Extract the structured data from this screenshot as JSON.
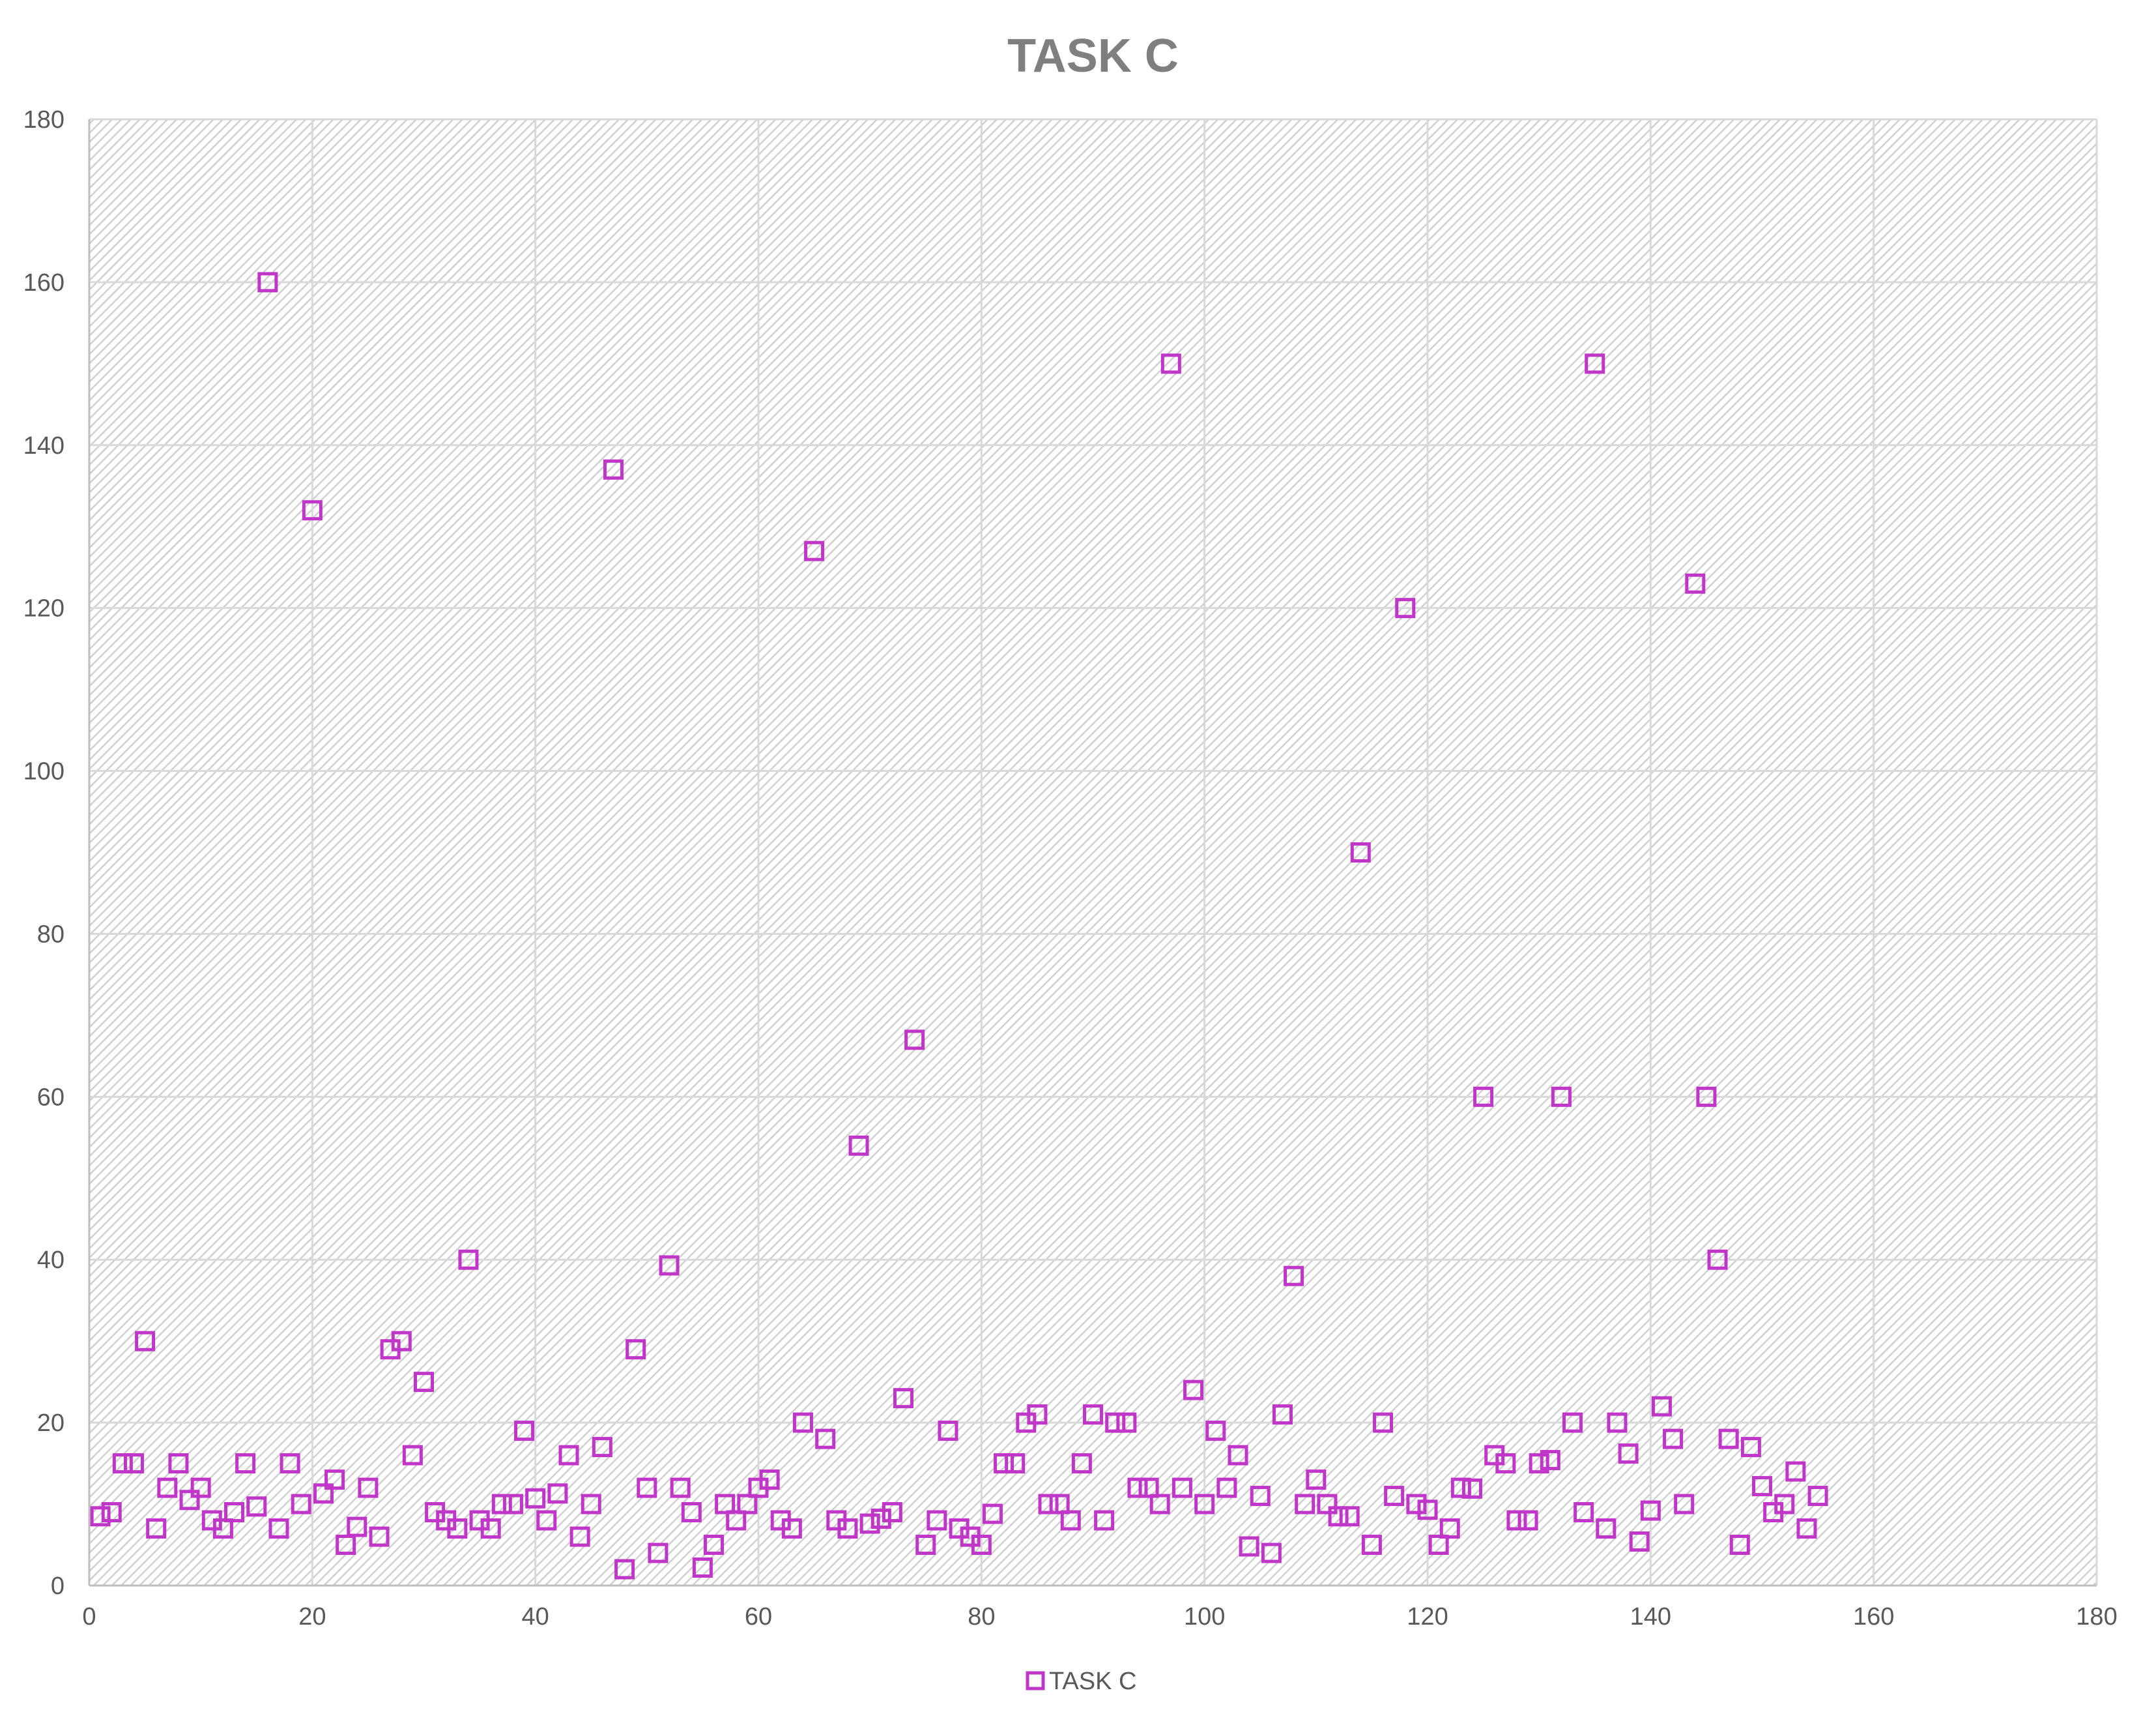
{
  "chart_data": {
    "type": "scatter",
    "title": "TASK C",
    "xlabel": "",
    "ylabel": "",
    "xlim": [
      0,
      180
    ],
    "ylim": [
      0,
      180
    ],
    "x_ticks": [
      0,
      20,
      40,
      60,
      80,
      100,
      120,
      140,
      160,
      180
    ],
    "y_ticks": [
      0,
      20,
      40,
      60,
      80,
      100,
      120,
      140,
      160,
      180
    ],
    "grid": true,
    "legend_position": "bottom",
    "colors": {
      "marker": "#c036c8",
      "grid": "#d9d9d9",
      "background_hatch": "#d0d0d0",
      "title": "#7f7f7f",
      "tick": "#595959"
    },
    "series": [
      {
        "name": "TASK C",
        "marker": "hollow-square",
        "x": [
          1,
          2,
          3,
          4,
          5,
          6,
          7,
          8,
          9,
          10,
          11,
          12,
          13,
          14,
          15,
          16,
          17,
          18,
          19,
          20,
          21,
          22,
          23,
          24,
          25,
          26,
          27,
          28,
          29,
          30,
          31,
          32,
          33,
          34,
          35,
          36,
          37,
          38,
          39,
          40,
          41,
          42,
          43,
          44,
          45,
          46,
          47,
          48,
          49,
          50,
          51,
          52,
          53,
          54,
          55,
          56,
          57,
          58,
          59,
          60,
          61,
          62,
          63,
          64,
          65,
          66,
          67,
          68,
          69,
          70,
          71,
          72,
          73,
          74,
          75,
          76,
          77,
          78,
          79,
          80,
          81,
          82,
          83,
          84,
          85,
          86,
          87,
          88,
          89,
          90,
          91,
          92,
          93,
          94,
          95,
          96,
          97,
          98,
          99,
          100,
          101,
          102,
          103,
          104,
          105,
          106,
          107,
          108,
          109,
          110,
          111,
          112,
          113,
          114,
          115,
          116,
          117,
          118,
          119,
          120,
          121,
          122,
          123,
          124,
          125,
          126,
          127,
          128,
          129,
          130,
          131,
          132,
          133,
          134,
          135,
          136,
          137,
          138,
          139,
          140,
          141,
          142,
          143,
          144,
          145,
          146,
          147,
          148,
          149,
          150,
          151,
          152,
          153,
          154,
          155
        ],
        "y": [
          8.5,
          9,
          15,
          15,
          30,
          7,
          12,
          15,
          10.5,
          12,
          8,
          7,
          9,
          15,
          9.7,
          160,
          7,
          15,
          10,
          132,
          11.3,
          13,
          5,
          7.2,
          12,
          6,
          29,
          30,
          16,
          25,
          9,
          8,
          7,
          40,
          8,
          7,
          10,
          10,
          19,
          10.7,
          8,
          11.3,
          16,
          6,
          10,
          17,
          137,
          2,
          29,
          12,
          4,
          39.3,
          12,
          9,
          2.2,
          5,
          10,
          8,
          10,
          12,
          13,
          8,
          7,
          20,
          127,
          18,
          8,
          7,
          54,
          7.6,
          8.2,
          9,
          23,
          67,
          5,
          8,
          19,
          7,
          6,
          5,
          8.8,
          15,
          15,
          20,
          21,
          10,
          10,
          8,
          15,
          21,
          8,
          20,
          20,
          12,
          12,
          10,
          150,
          12,
          24,
          10,
          19,
          12,
          16,
          4.8,
          11,
          4,
          21,
          38,
          10,
          13,
          10,
          8.5,
          8.5,
          90,
          5,
          20,
          11,
          120,
          10,
          9.3,
          5,
          7,
          12,
          11.9,
          60,
          16,
          15,
          8,
          8,
          15,
          15.4,
          60,
          20,
          9,
          150,
          7,
          20,
          16.2,
          5.4,
          9.2,
          22,
          18,
          10,
          123,
          60,
          40,
          18,
          5,
          17,
          12.2,
          9,
          10,
          14,
          7,
          11
        ]
      }
    ]
  }
}
